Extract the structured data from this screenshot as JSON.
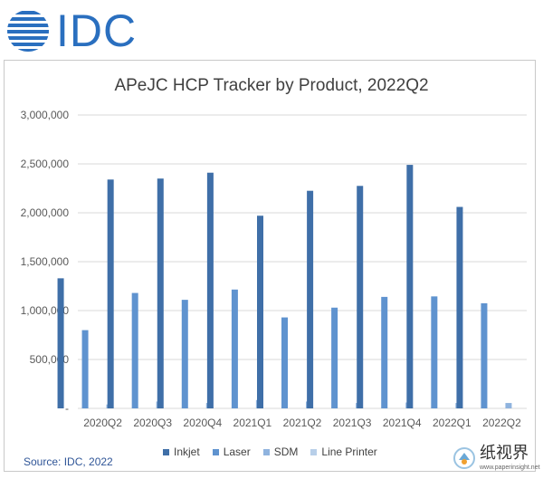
{
  "logo": {
    "text": "IDC"
  },
  "source": "Source: IDC, 2022",
  "watermark": {
    "text": "纸视界",
    "url": "www.paperinsight.net"
  },
  "colors": {
    "inkjet": "#3f6fa8",
    "laser": "#5f93cf",
    "sdm": "#8fb3de",
    "line_printer": "#b8cfe9",
    "grid": "#d9d9d9",
    "logo": "#2a6fbf"
  },
  "chart_data": {
    "type": "bar",
    "title": "APeJC HCP Tracker by Product, 2022Q2",
    "xlabel": "",
    "ylabel": "",
    "ylim": [
      0,
      3000000
    ],
    "yticks": [
      0,
      500000,
      1000000,
      1500000,
      2000000,
      2500000,
      3000000
    ],
    "ytick_labels": [
      "-",
      "500,000",
      "1,000,000",
      "1,500,000",
      "2,000,000",
      "2,500,000",
      "3,000,000"
    ],
    "grid": true,
    "legend_position": "bottom",
    "categories": [
      "2020Q2",
      "2020Q3",
      "2020Q4",
      "2021Q1",
      "2021Q2",
      "2021Q3",
      "2021Q4",
      "2022Q1",
      "2022Q2"
    ],
    "series": [
      {
        "name": "Inkjet",
        "color_key": "inkjet",
        "values": [
          1330000,
          2340000,
          2350000,
          2410000,
          1970000,
          2225000,
          2275000,
          2490000,
          2060000
        ]
      },
      {
        "name": "Laser",
        "color_key": "laser",
        "values": [
          800000,
          1180000,
          1110000,
          1215000,
          930000,
          1030000,
          1140000,
          1145000,
          1075000
        ]
      },
      {
        "name": "SDM",
        "color_key": "sdm",
        "values": [
          40000,
          70000,
          55000,
          85000,
          70000,
          55000,
          60000,
          55000,
          55000
        ]
      },
      {
        "name": "Line Printer",
        "color_key": "line_printer",
        "values": [
          0,
          0,
          0,
          0,
          0,
          0,
          0,
          0,
          0
        ]
      }
    ]
  }
}
